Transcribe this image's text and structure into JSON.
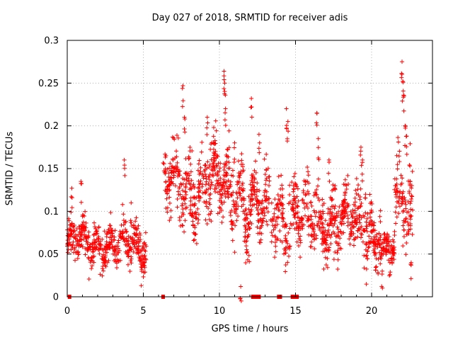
{
  "chart_data": {
    "type": "scatter",
    "title": "Day 027 of 2018, SRMTID for receiver adis",
    "xlabel": "GPS time / hours",
    "ylabel": "SRMTID / TECUs",
    "xlim": [
      0,
      24
    ],
    "ylim": [
      0,
      0.3
    ],
    "xticks": [
      "0",
      "5",
      "10",
      "15",
      "20"
    ],
    "xtick_values": [
      0,
      5,
      10,
      15,
      20
    ],
    "yticks": [
      "0",
      "0.05",
      "0.1",
      "0.15",
      "0.2",
      "0.25",
      "0.3"
    ],
    "ytick_values": [
      0,
      0.05,
      0.1,
      0.15,
      0.2,
      0.25,
      0.3
    ],
    "grid": true,
    "marker": "+",
    "color": "#ff0000",
    "zero_markers_x": [
      0.15,
      6.3,
      12.2,
      12.4,
      12.6,
      13.9,
      14.0,
      14.8,
      14.9,
      15.1
    ],
    "segments": [
      {
        "x_start": 0.0,
        "x_end": 5.2,
        "mean": 0.062,
        "spread": 0.02,
        "peaks": [
          [
            0.3,
            0.127
          ],
          [
            0.9,
            0.135
          ],
          [
            3.75,
            0.16
          ],
          [
            4.2,
            0.11
          ]
        ]
      },
      {
        "x_start": 6.3,
        "x_end": 11.6,
        "mean": 0.13,
        "spread": 0.035,
        "peaks": [
          [
            7.6,
            0.247
          ],
          [
            7.7,
            0.21
          ],
          [
            9.2,
            0.21
          ],
          [
            9.6,
            0.18
          ],
          [
            10.3,
            0.264
          ],
          [
            10.35,
            0.25
          ],
          [
            10.4,
            0.22
          ],
          [
            11.0,
            0.18
          ]
        ]
      },
      {
        "x_start": 11.6,
        "x_end": 15.2,
        "mean": 0.1,
        "spread": 0.035,
        "peaks": [
          [
            12.1,
            0.232
          ],
          [
            12.6,
            0.19
          ],
          [
            14.4,
            0.22
          ],
          [
            14.5,
            0.205
          ],
          [
            11.4,
            0.012
          ]
        ]
      },
      {
        "x_start": 15.2,
        "x_end": 19.0,
        "mean": 0.09,
        "spread": 0.03,
        "peaks": [
          [
            16.4,
            0.215
          ],
          [
            16.5,
            0.185
          ],
          [
            17.2,
            0.16
          ],
          [
            17.6,
            0.13
          ]
        ]
      },
      {
        "x_start": 19.0,
        "x_end": 20.6,
        "mean": 0.08,
        "spread": 0.03,
        "peaks": [
          [
            19.3,
            0.175
          ],
          [
            19.4,
            0.16
          ],
          [
            19.6,
            0.12
          ]
        ]
      },
      {
        "x_start": 20.6,
        "x_end": 21.5,
        "mean": 0.055,
        "spread": 0.015,
        "peaks": [
          [
            20.7,
            0.03
          ],
          [
            21.2,
            0.04
          ]
        ]
      },
      {
        "x_start": 21.5,
        "x_end": 22.7,
        "mean": 0.1,
        "spread": 0.04,
        "peaks": [
          [
            22.0,
            0.275
          ],
          [
            22.05,
            0.252
          ],
          [
            22.1,
            0.236
          ],
          [
            22.2,
            0.2
          ],
          [
            22.3,
            0.188
          ],
          [
            22.6,
            0.04
          ]
        ]
      }
    ]
  }
}
